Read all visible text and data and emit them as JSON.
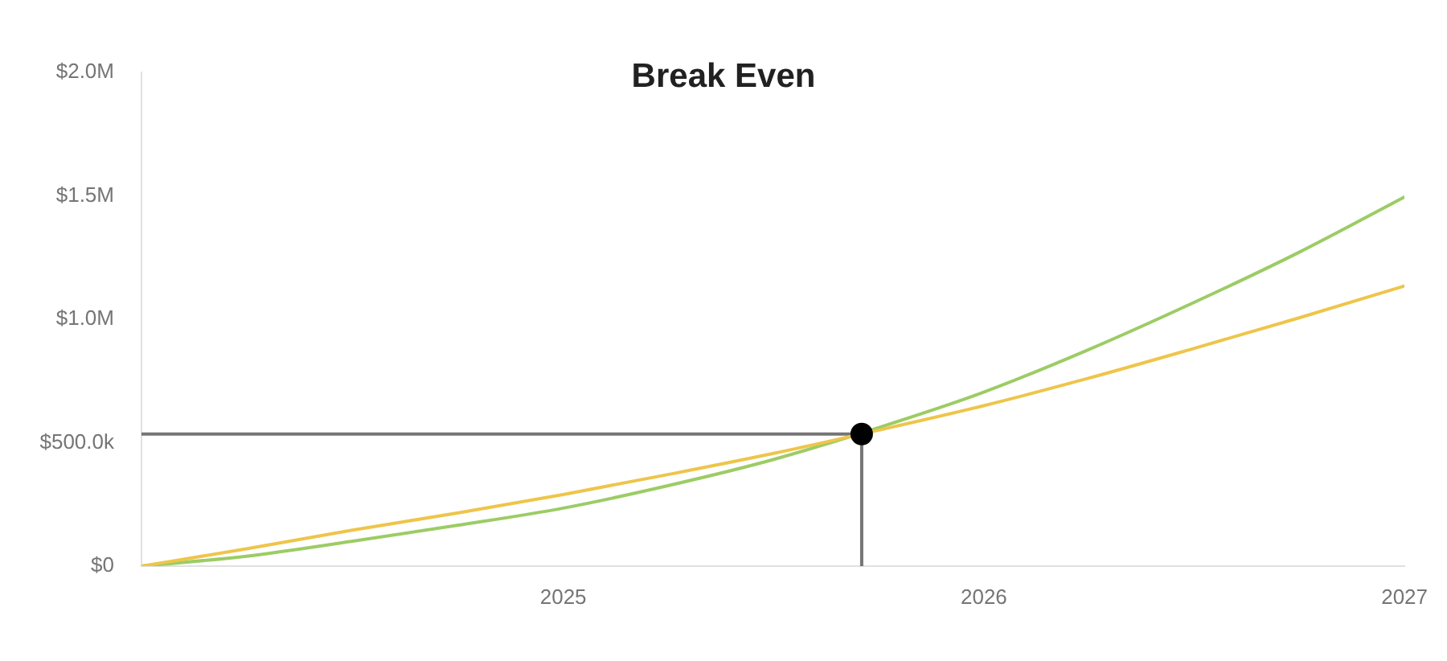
{
  "chart_data": {
    "type": "line",
    "title": "Break Even",
    "x": [
      "2024-01",
      "2024-04",
      "2024-07",
      "2024-10",
      "2025-01",
      "2025-04",
      "2025-07",
      "2025-10",
      "2026-01",
      "2026-04",
      "2026-07",
      "2026-10",
      "2027-01"
    ],
    "series": [
      {
        "color": "#eec54b",
        "values": [
          0,
          70000,
          145000,
          215000,
          290000,
          370000,
          455000,
          550000,
          650000,
          760000,
          880000,
          1005000,
          1135000
        ]
      },
      {
        "color": "#9ccc65",
        "values": [
          0,
          40000,
          100000,
          165000,
          235000,
          325000,
          430000,
          560000,
          705000,
          875000,
          1065000,
          1270000,
          1495000
        ]
      },
      {
        "type": "line",
        "color": "#757575",
        "x": [
          "2024-01",
          "2025-09-17",
          "2025-09-17"
        ],
        "values": [
          535000,
          535000,
          0
        ]
      },
      {
        "type": "scatter",
        "color": "#000000",
        "marker": "circle",
        "x": [
          "2025-09-17"
        ],
        "values": [
          535000
        ]
      }
    ],
    "xlim": [
      "2024-01",
      "2027-01"
    ],
    "xticks": [
      "2025",
      "2026",
      "2027"
    ],
    "ylim": [
      0,
      2000000
    ],
    "yticks": [
      {
        "value": 0,
        "label": "$0"
      },
      {
        "value": 500000,
        "label": "$500.0k"
      },
      {
        "value": 1000000,
        "label": "$1.0M"
      },
      {
        "value": 1500000,
        "label": "$1.5M"
      },
      {
        "value": 2000000,
        "label": "$2.0M"
      }
    ],
    "grid": false,
    "legend": false,
    "marker": "none"
  }
}
